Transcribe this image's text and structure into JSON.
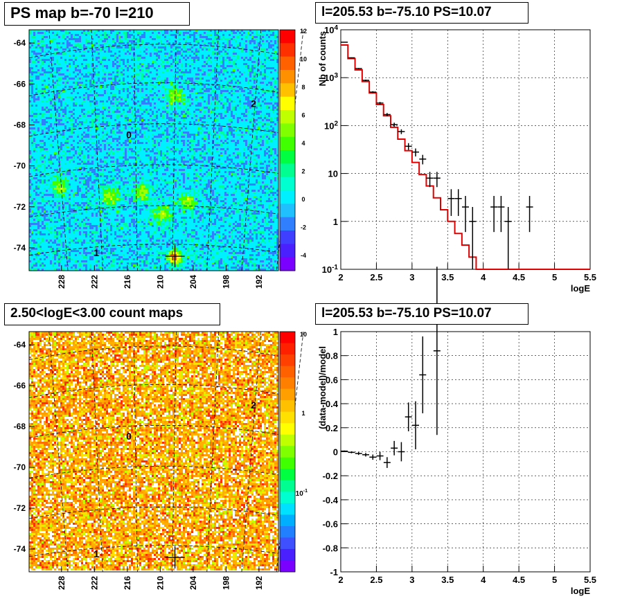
{
  "panels": {
    "tl_title": "PS map b=-70 l=210",
    "tr_title": "l=205.53 b=-75.10 PS=10.07",
    "bl_title": "2.50<logE<3.00 count maps",
    "br_title": "l=205.53 b=-75.10 PS=10.07"
  },
  "chart_data": [
    {
      "type": "heatmap",
      "title": "PS map b=-70 l=210",
      "y_ticks": [
        "-64",
        "-66",
        "-68",
        "-70",
        "-72",
        "-74"
      ],
      "x_ticks": [
        "228",
        "222",
        "216",
        "210",
        "204",
        "198",
        "192"
      ],
      "colorbar_ticks": [
        "12",
        "10",
        "8",
        "6",
        "4",
        "2",
        "0",
        "-2",
        "-4"
      ],
      "zlim": [
        -5,
        12
      ],
      "source_labels": [
        "0",
        "1",
        "2"
      ],
      "grid": true
    },
    {
      "type": "line",
      "title": "l=205.53 b=-75.10 PS=10.07",
      "xlabel": "logE",
      "ylabel": "Nb of counts",
      "x_ticks": [
        "2",
        "2.5",
        "3",
        "3.5",
        "4",
        "4.5",
        "5",
        "5.5"
      ],
      "y_ticks": [
        "10^-1",
        "1",
        "10",
        "10^2",
        "10^3",
        "10^4"
      ],
      "xlim": [
        2,
        5.5
      ],
      "ylim": [
        0.1,
        10000
      ],
      "log_y": true,
      "grid": true,
      "model_step": {
        "bin_edges": [
          2.0,
          2.1,
          2.2,
          2.3,
          2.4,
          2.5,
          2.6,
          2.7,
          2.8,
          2.9,
          3.0,
          3.1,
          3.2,
          3.3,
          3.4,
          3.5,
          3.6,
          3.7,
          3.8,
          3.9,
          4.0,
          4.1,
          4.2,
          4.3,
          4.4,
          4.5,
          4.6,
          4.7,
          4.8,
          4.9,
          5.0,
          5.1,
          5.2,
          5.3,
          5.4,
          5.5
        ],
        "values": [
          4800,
          2500,
          1450,
          830,
          480,
          275,
          160,
          92,
          52,
          30,
          17,
          9.5,
          5.5,
          3.1,
          1.75,
          1.0,
          0.56,
          0.32,
          0.18,
          0.1,
          0.1,
          0.1,
          0.1,
          0.1,
          0.1,
          0.1,
          0.1,
          0.1,
          0.1,
          0.1,
          0.1,
          0.1,
          0.1,
          0.1,
          0.1
        ]
      },
      "data_points": [
        {
          "x": 2.05,
          "y": 5500,
          "err": 75
        },
        {
          "x": 2.15,
          "y": 2600,
          "err": 51
        },
        {
          "x": 2.25,
          "y": 1550,
          "err": 39
        },
        {
          "x": 2.35,
          "y": 880,
          "err": 30
        },
        {
          "x": 2.45,
          "y": 500,
          "err": 22
        },
        {
          "x": 2.55,
          "y": 295,
          "err": 17
        },
        {
          "x": 2.65,
          "y": 170,
          "err": 13
        },
        {
          "x": 2.75,
          "y": 105,
          "err": 10
        },
        {
          "x": 2.85,
          "y": 75,
          "err": 8.7
        },
        {
          "x": 2.95,
          "y": 37,
          "err": 6
        },
        {
          "x": 3.05,
          "y": 28,
          "err": 5.3
        },
        {
          "x": 3.15,
          "y": 20,
          "err": 4.5
        },
        {
          "x": 3.25,
          "y": 8,
          "err": 2.8
        },
        {
          "x": 3.35,
          "y": 8,
          "err": 2.8
        },
        {
          "x": 3.55,
          "y": 3,
          "err": 1.7
        },
        {
          "x": 3.65,
          "y": 3,
          "err": 1.7
        },
        {
          "x": 3.75,
          "y": 2,
          "err": 1.4
        },
        {
          "x": 3.85,
          "y": 1,
          "err": 1
        },
        {
          "x": 4.15,
          "y": 2,
          "err": 1.4
        },
        {
          "x": 4.25,
          "y": 2,
          "err": 1.4
        },
        {
          "x": 4.35,
          "y": 1,
          "err": 1
        },
        {
          "x": 4.65,
          "y": 2,
          "err": 1.4
        }
      ]
    },
    {
      "type": "heatmap",
      "title": "2.50<logE<3.00 count maps",
      "y_ticks": [
        "-64",
        "-66",
        "-68",
        "-70",
        "-72",
        "-74"
      ],
      "x_ticks": [
        "228",
        "222",
        "216",
        "210",
        "204",
        "198",
        "192"
      ],
      "colorbar_ticks": [
        "10",
        "1",
        "10^-1"
      ],
      "log_z": true,
      "source_labels": [
        "0",
        "1",
        "2"
      ],
      "grid": true
    },
    {
      "type": "scatter",
      "title": "l=205.53 b=-75.10 PS=10.07",
      "xlabel": "logE",
      "ylabel": "(data-model)/model",
      "x_ticks": [
        "2",
        "2.5",
        "3",
        "3.5",
        "4",
        "4.5",
        "5",
        "5.5"
      ],
      "y_ticks": [
        "1",
        "0.8",
        "0.6",
        "0.4",
        "0.2",
        "0",
        "-0.2",
        "-0.4",
        "-0.6",
        "-0.8",
        "-1"
      ],
      "xlim": [
        2,
        5.5
      ],
      "ylim": [
        -1,
        1
      ],
      "grid": true,
      "data_points": [
        {
          "x": 2.05,
          "y": 0.005,
          "err": 0.005
        },
        {
          "x": 2.15,
          "y": -0.005,
          "err": 0.008
        },
        {
          "x": 2.25,
          "y": -0.015,
          "err": 0.012
        },
        {
          "x": 2.35,
          "y": -0.025,
          "err": 0.015
        },
        {
          "x": 2.45,
          "y": -0.045,
          "err": 0.022
        },
        {
          "x": 2.55,
          "y": -0.035,
          "err": 0.035
        },
        {
          "x": 2.65,
          "y": -0.09,
          "err": 0.045
        },
        {
          "x": 2.75,
          "y": 0.03,
          "err": 0.06
        },
        {
          "x": 2.85,
          "y": 0.0,
          "err": 0.08
        },
        {
          "x": 2.95,
          "y": 0.29,
          "err": 0.12
        },
        {
          "x": 3.05,
          "y": 0.22,
          "err": 0.2
        },
        {
          "x": 3.15,
          "y": 0.64,
          "err": 0.32
        },
        {
          "x": 3.35,
          "y": 0.84,
          "err": 0.7
        }
      ]
    }
  ]
}
